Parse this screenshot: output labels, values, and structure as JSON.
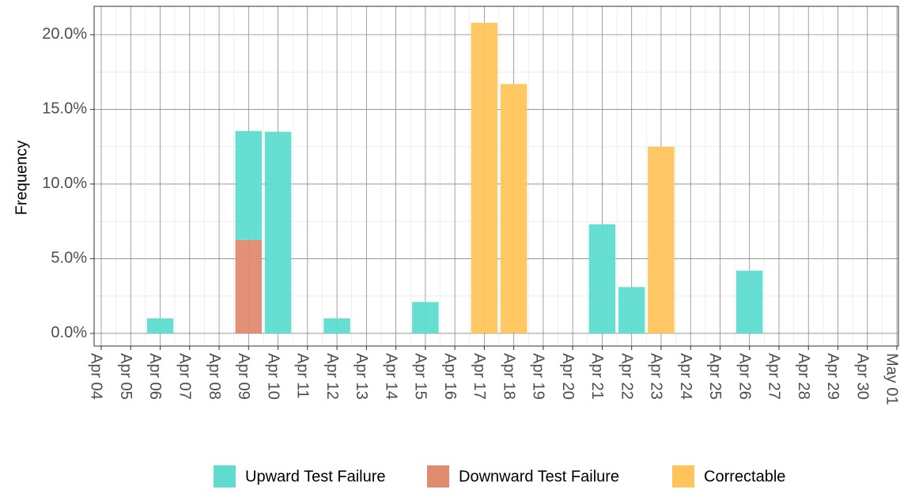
{
  "chart_data": {
    "type": "stacked_bar",
    "y_label": "Frequency",
    "categories": [
      "Apr 04",
      "Apr 05",
      "Apr 06",
      "Apr 07",
      "Apr 08",
      "Apr 09",
      "Apr 10",
      "Apr 11",
      "Apr 12",
      "Apr 13",
      "Apr 14",
      "Apr 15",
      "Apr 16",
      "Apr 17",
      "Apr 18",
      "Apr 19",
      "Apr 20",
      "Apr 21",
      "Apr 22",
      "Apr 23",
      "Apr 24",
      "Apr 25",
      "Apr 26",
      "Apr 27",
      "Apr 28",
      "Apr 29",
      "Apr 30",
      "May 01"
    ],
    "series": [
      {
        "name": "Upward Test Failure",
        "color": "#5fdcd0",
        "values": [
          null,
          null,
          1.0,
          null,
          null,
          7.3,
          13.5,
          null,
          1.0,
          null,
          null,
          2.1,
          null,
          null,
          null,
          null,
          null,
          7.3,
          3.1,
          null,
          null,
          null,
          4.2,
          null,
          null,
          null,
          null,
          null
        ]
      },
      {
        "name": "Downward Test Failure",
        "color": "#e08a70",
        "values": [
          null,
          null,
          null,
          null,
          null,
          6.25,
          null,
          null,
          null,
          null,
          null,
          null,
          null,
          null,
          null,
          null,
          null,
          null,
          null,
          null,
          null,
          null,
          null,
          null,
          null,
          null,
          null,
          null
        ]
      },
      {
        "name": "Correctable",
        "color": "#ffc55c",
        "values": [
          null,
          null,
          null,
          null,
          null,
          null,
          null,
          null,
          null,
          null,
          null,
          null,
          null,
          20.8,
          16.7,
          null,
          null,
          null,
          null,
          12.5,
          null,
          null,
          null,
          null,
          null,
          null,
          null,
          null
        ]
      }
    ],
    "ylim": [
      -0.85,
      21.9
    ],
    "yticks": [
      {
        "value": 0,
        "label": "0.0%"
      },
      {
        "value": 5,
        "label": "5.0%"
      },
      {
        "value": 10,
        "label": "10.0%"
      },
      {
        "value": 15,
        "label": "15.0%"
      },
      {
        "value": 20,
        "label": "20.0%"
      }
    ],
    "grid": true,
    "legend": "bottom"
  }
}
